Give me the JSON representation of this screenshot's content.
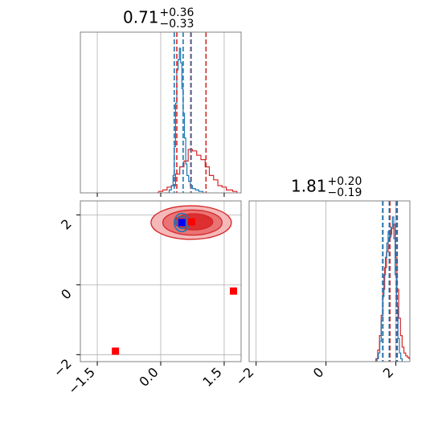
{
  "colors": {
    "posterior_a": "#1f77b4",
    "posterior_b": "#d62728",
    "marker_red": "#ff0000",
    "marker_blue": "#0000ff",
    "grid": "#b0b0b0",
    "frame": "#808080"
  },
  "titles": {
    "p1": {
      "value": "0.71",
      "plus": "+0.36",
      "minus": "−0.33"
    },
    "p2": {
      "value": "1.81",
      "plus": "+0.20",
      "minus": "−0.19"
    }
  },
  "chart_data": {
    "type": "corner",
    "grid": true,
    "params": [
      {
        "name": "",
        "range": [
          -1.9,
          1.9
        ],
        "ticks": [
          -1.5,
          0.0,
          1.5
        ],
        "tick_labels": [
          "−1.5",
          "0.0",
          "1.5"
        ]
      },
      {
        "name": "",
        "range": [
          -2.2,
          2.4
        ],
        "ticks": [
          -2,
          0,
          2
        ],
        "tick_labels": [
          "−2",
          "0",
          "2"
        ]
      }
    ],
    "hist_1d": [
      {
        "param": 0,
        "blue_quantiles": [
          0.32,
          0.53,
          0.72
        ],
        "red_quantiles": [
          0.38,
          0.71,
          1.07
        ],
        "blue_steps": [
          [
            0.1,
            0
          ],
          [
            0.2,
            0.02
          ],
          [
            0.25,
            0.05
          ],
          [
            0.29,
            0.12
          ],
          [
            0.32,
            0.32
          ],
          [
            0.35,
            0.62
          ],
          [
            0.38,
            0.85
          ],
          [
            0.41,
            0.92
          ],
          [
            0.44,
            1.0
          ],
          [
            0.47,
            0.9
          ],
          [
            0.5,
            0.72
          ],
          [
            0.53,
            0.55
          ],
          [
            0.56,
            0.38
          ],
          [
            0.59,
            0.2
          ],
          [
            0.62,
            0.12
          ],
          [
            0.66,
            0.08
          ],
          [
            0.7,
            0.05
          ],
          [
            0.75,
            0.03
          ],
          [
            0.82,
            0.02
          ],
          [
            0.9,
            0.01
          ],
          [
            1.0,
            0
          ]
        ],
        "red_steps": [
          [
            -0.1,
            0
          ],
          [
            -0.05,
            0.01
          ],
          [
            0.05,
            0.02
          ],
          [
            0.15,
            0.04
          ],
          [
            0.25,
            0.05
          ],
          [
            0.35,
            0.13
          ],
          [
            0.45,
            0.18
          ],
          [
            0.55,
            0.22
          ],
          [
            0.65,
            0.3
          ],
          [
            0.75,
            0.29
          ],
          [
            0.85,
            0.26
          ],
          [
            0.95,
            0.23
          ],
          [
            1.05,
            0.18
          ],
          [
            1.15,
            0.12
          ],
          [
            1.25,
            0.09
          ],
          [
            1.35,
            0.05
          ],
          [
            1.45,
            0.04
          ],
          [
            1.55,
            0.02
          ],
          [
            1.7,
            0.01
          ],
          [
            1.8,
            0
          ]
        ]
      },
      {
        "param": 1,
        "blue_quantiles": [
          1.62,
          1.81,
          2.01
        ],
        "red_quantiles": [
          1.63,
          1.83,
          2.04
        ],
        "blue_steps": [
          [
            1.42,
            0
          ],
          [
            1.46,
            0.02
          ],
          [
            1.5,
            0.06
          ],
          [
            1.54,
            0.14
          ],
          [
            1.58,
            0.28
          ],
          [
            1.62,
            0.45
          ],
          [
            1.66,
            0.6
          ],
          [
            1.7,
            0.72
          ],
          [
            1.74,
            0.82
          ],
          [
            1.78,
            0.9
          ],
          [
            1.82,
            0.86
          ],
          [
            1.86,
            0.93
          ],
          [
            1.9,
            1.0
          ],
          [
            1.94,
            0.85
          ],
          [
            1.98,
            0.6
          ],
          [
            2.02,
            0.38
          ],
          [
            2.06,
            0.16
          ],
          [
            2.1,
            0.06
          ],
          [
            2.14,
            0.02
          ],
          [
            2.18,
            0
          ]
        ],
        "red_steps": [
          [
            1.38,
            0
          ],
          [
            1.43,
            0.02
          ],
          [
            1.48,
            0.08
          ],
          [
            1.53,
            0.18
          ],
          [
            1.58,
            0.32
          ],
          [
            1.63,
            0.5
          ],
          [
            1.68,
            0.65
          ],
          [
            1.73,
            0.76
          ],
          [
            1.78,
            0.85
          ],
          [
            1.83,
            0.88
          ],
          [
            1.88,
            0.92
          ],
          [
            1.93,
            0.95
          ],
          [
            1.98,
            0.72
          ],
          [
            2.03,
            0.5
          ],
          [
            2.08,
            0.3
          ],
          [
            2.13,
            0.18
          ],
          [
            2.18,
            0.1
          ],
          [
            2.23,
            0.06
          ],
          [
            2.28,
            0.04
          ],
          [
            2.33,
            0.03
          ],
          [
            2.38,
            0.02
          ],
          [
            2.43,
            0
          ]
        ]
      }
    ],
    "hist_2d": {
      "blue_contours": [
        {
          "cx": 0.5,
          "cy": 1.78,
          "rx": 0.18,
          "ry": 0.26
        },
        {
          "cx": 0.5,
          "cy": 1.78,
          "rx": 0.12,
          "ry": 0.17
        },
        {
          "cx": 0.5,
          "cy": 1.78,
          "rx": 0.06,
          "ry": 0.09
        }
      ],
      "red_contours": [
        {
          "cx": 0.72,
          "cy": 1.78,
          "rx": 0.95,
          "ry": 0.48
        },
        {
          "cx": 0.75,
          "cy": 1.78,
          "rx": 0.7,
          "ry": 0.36
        },
        {
          "cx": 0.78,
          "cy": 1.8,
          "rx": 0.45,
          "ry": 0.23
        }
      ],
      "red_markers": [
        [
          -1.07,
          -1.9
        ],
        [
          1.72,
          -0.18
        ],
        [
          0.73,
          1.8
        ]
      ],
      "blue_markers": [
        [
          0.5,
          1.78
        ]
      ]
    }
  }
}
